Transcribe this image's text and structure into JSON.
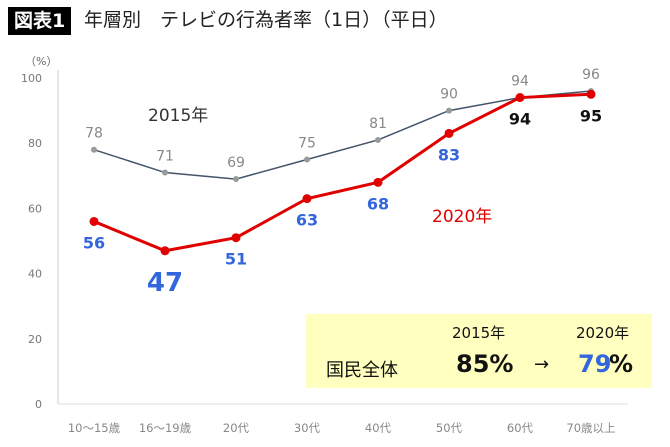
{
  "header": {
    "badge": "図表1",
    "title": "年層別　テレビの行為者率（1日）（平日）",
    "unit": "（%）"
  },
  "chart_data": {
    "type": "line",
    "categories": [
      "10～15歳",
      "16～19歳",
      "20代",
      "30代",
      "40代",
      "50代",
      "60代",
      "70歳以上"
    ],
    "ylim": [
      0,
      100
    ],
    "yticks": [
      "0",
      "20",
      "40",
      "60",
      "80",
      "100"
    ],
    "series": [
      {
        "name": "2015年",
        "values": [
          78,
          71,
          69,
          75,
          81,
          90,
          94,
          96
        ],
        "color": "#44546a"
      },
      {
        "name": "2020年",
        "values": [
          56,
          47,
          51,
          63,
          68,
          83,
          94,
          95
        ],
        "color": "#e00000"
      }
    ],
    "label_colors": {
      "2015": "#888888",
      "2020_low": "#3366dd",
      "2020_high": "#111111"
    }
  },
  "summary": {
    "label": "国民全体",
    "year_a": "2015年",
    "year_b": "2020年",
    "value_a": "85%",
    "arrow": "→",
    "value_b_num": "79",
    "value_b_pct": "%"
  }
}
